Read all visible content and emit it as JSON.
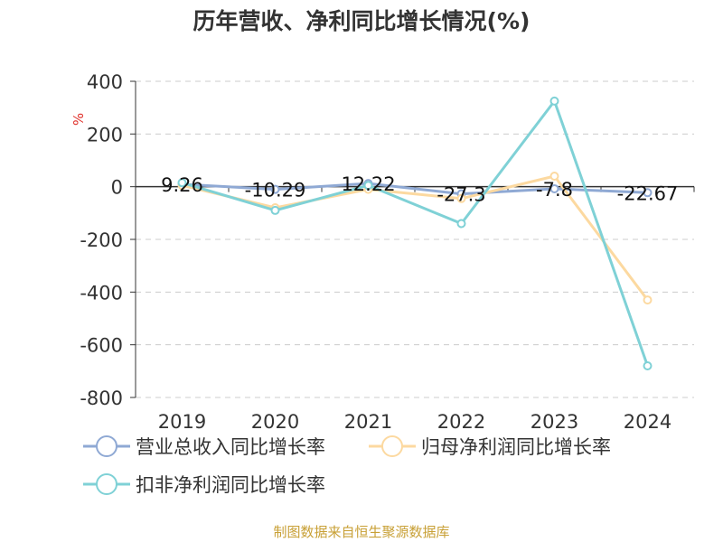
{
  "chart_data": {
    "type": "line",
    "title": "历年营收、净利同比增长情况(%)",
    "ylabel": "%",
    "categories": [
      "2019",
      "2020",
      "2021",
      "2022",
      "2023",
      "2024"
    ],
    "ylim": [
      -800,
      400
    ],
    "yticks": [
      400,
      200,
      0,
      -200,
      -400,
      -600,
      -800
    ],
    "grid": true,
    "legend_position": "bottom-left",
    "series": [
      {
        "name": "营业总收入同比增长率",
        "color": "#8fa9d4",
        "values": [
          9.26,
          -10.29,
          12.22,
          -27.3,
          -7.8,
          -22.67
        ],
        "labels": [
          "9.26",
          "-10.29",
          "12.22",
          "-27.3",
          "-7.8",
          "-22.67"
        ]
      },
      {
        "name": "归母净利润同比增长率",
        "color": "#fcd9a0",
        "values": [
          5,
          -80,
          -10,
          -45,
          40,
          -430
        ]
      },
      {
        "name": "扣非净利润同比增长率",
        "color": "#7fd1d6",
        "values": [
          15,
          -90,
          5,
          -140,
          325,
          -680
        ]
      }
    ],
    "source": "制图数据来自恒生聚源数据库"
  }
}
